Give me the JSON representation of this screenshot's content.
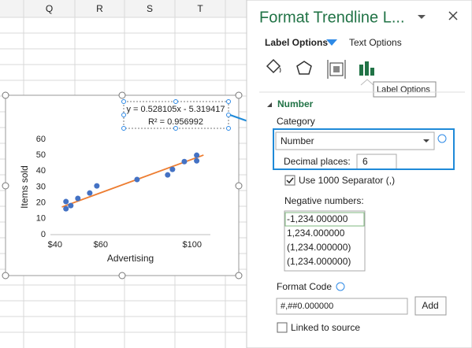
{
  "sheet": {
    "columns": [
      "Q",
      "R",
      "S",
      "T"
    ]
  },
  "chart_data": {
    "type": "scatter",
    "x": [
      44.8,
      44.8,
      46.9,
      50,
      55.2,
      58.3,
      75.9,
      89.3,
      91.4,
      96.6,
      102,
      102
    ],
    "values": [
      20.8,
      16.3,
      18.3,
      22.8,
      26.2,
      30.7,
      34.7,
      37.6,
      41.1,
      46,
      50,
      46.5
    ],
    "color": "#4472c4",
    "xlim": [
      38,
      108
    ],
    "xticks": [
      {
        "value": 40,
        "label": "$40"
      },
      {
        "value": 60,
        "label": "$60"
      },
      {
        "value": 100,
        "label": "$100"
      }
    ],
    "ylim": [
      0,
      60
    ],
    "yticks": [
      0,
      10,
      20,
      30,
      40,
      50,
      60
    ],
    "x_label": "Advertising",
    "y_label": "Items sold",
    "trendline": {
      "x": [
        43,
        105
      ],
      "y": [
        17.4,
        50.1
      ],
      "color": "#ed7d31",
      "label": [
        "y = 0.528105x - 5.319417",
        "R² = 0.956992"
      ]
    }
  },
  "pane": {
    "title": "Format Trendline L...",
    "tabs": [
      "Label Options",
      "Text Options"
    ],
    "tooltip": "Label Options",
    "section": "Number",
    "category_label": "Category",
    "category_value": "Number",
    "decimal_label": "Decimal places:",
    "decimal_value": "6",
    "separator_label": "Use 1000 Separator (,)",
    "negative_label": "Negative numbers:",
    "negative_options": [
      "-1,234.000000",
      "1,234.000000",
      "(1,234.000000)",
      "(1,234.000000)"
    ],
    "negative_colors": [
      "#000000",
      "#c00000",
      "#000000",
      "#c00000"
    ],
    "format_code_label": "Format Code",
    "format_code": "#,##0.000000",
    "add_button": "Add",
    "linked_label": "Linked to source"
  }
}
